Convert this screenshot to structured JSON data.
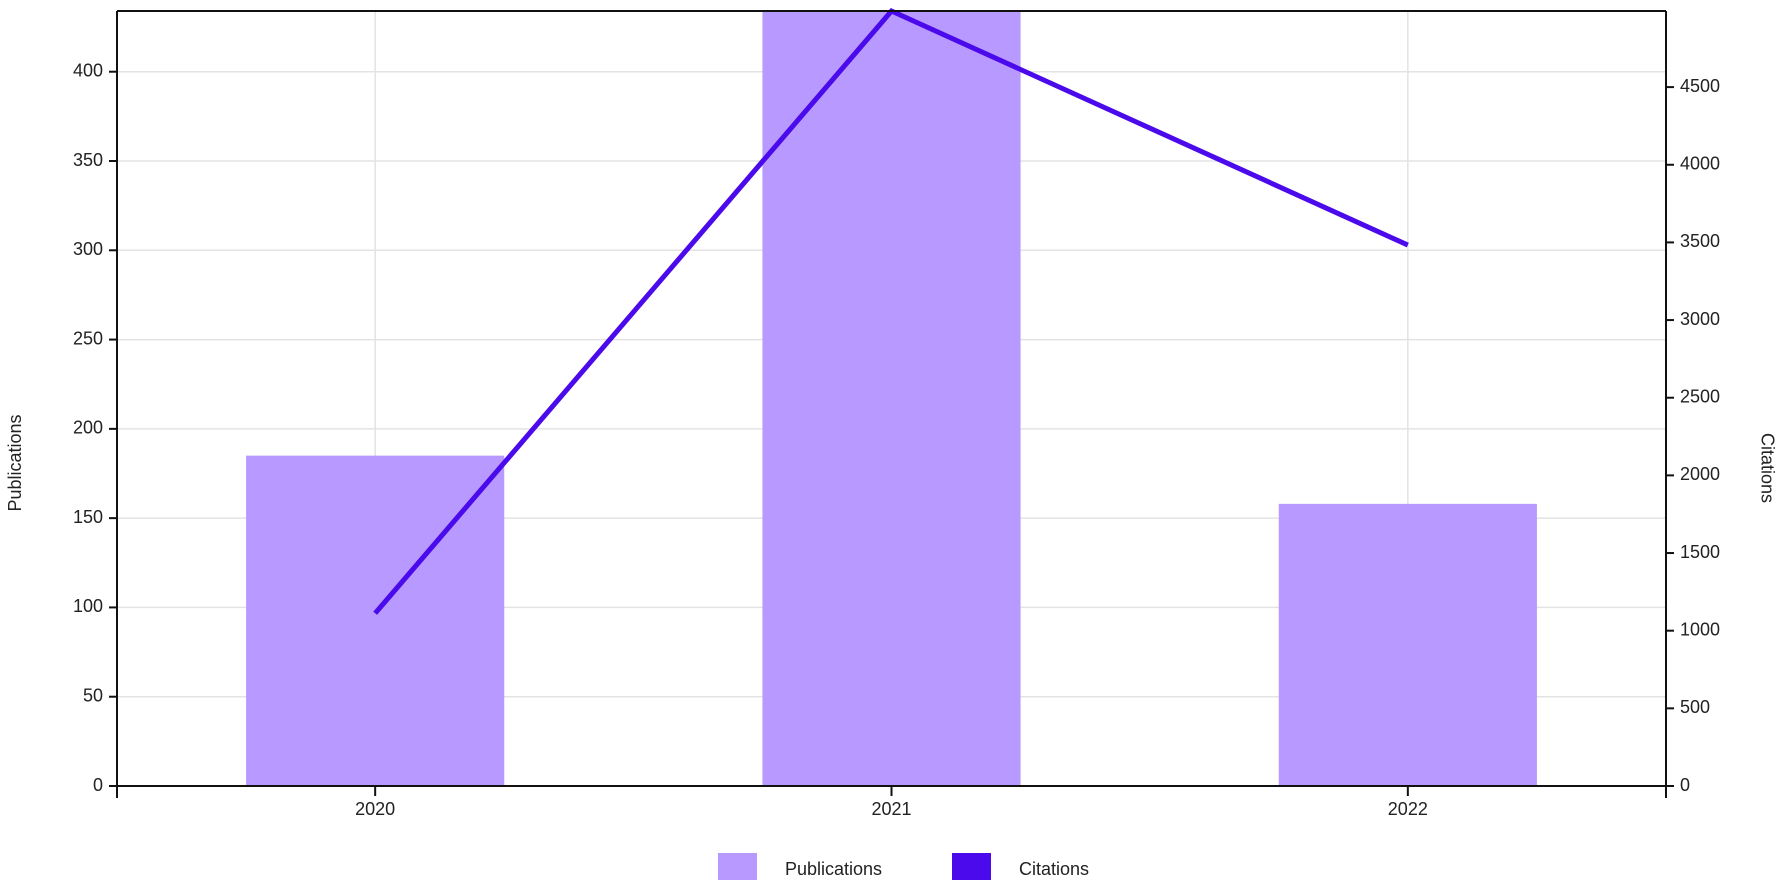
{
  "chart_data": {
    "type": "bar",
    "categories": [
      "2020",
      "2021",
      "2022"
    ],
    "series": [
      {
        "name": "Publications",
        "type": "bar",
        "color": "#b899ff",
        "values": [
          185,
          434,
          158
        ]
      },
      {
        "name": "Citations",
        "type": "line",
        "color": "#4a0aeb",
        "axis": "y2",
        "values": [
          1112,
          4990,
          3483
        ]
      }
    ],
    "ylabel": "Publications",
    "y2label": "Citations",
    "ylim": [
      0,
      434
    ],
    "yticks": [
      0,
      50,
      100,
      150,
      200,
      250,
      300,
      350,
      400
    ],
    "y2lim": [
      0,
      4990
    ],
    "y2ticks": [
      0,
      500,
      1000,
      1500,
      2000,
      2500,
      3000,
      3500,
      4000,
      4500
    ],
    "grid": true,
    "legend": "bottom"
  }
}
